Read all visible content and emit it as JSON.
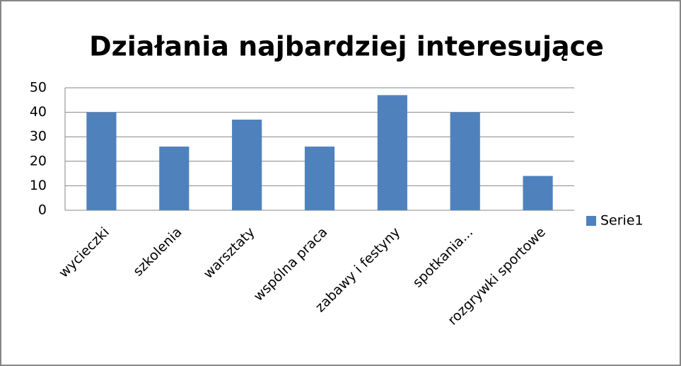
{
  "chart_data": {
    "type": "bar",
    "title": "Działania najbardziej interesujące",
    "categories": [
      "wycieczki",
      "szkolenia",
      "warsztaty",
      "wspólna praca",
      "zabawy i festyny",
      "spotkania...",
      "rozgrywki sportowe"
    ],
    "series": [
      {
        "name": "Serie1",
        "color": "#4f81bd",
        "values": [
          40,
          26,
          37,
          26,
          47,
          40,
          14
        ]
      }
    ],
    "ylim": [
      0,
      50
    ],
    "yticks": [
      0,
      10,
      20,
      30,
      40,
      50
    ],
    "grid": true,
    "legend": "right"
  }
}
